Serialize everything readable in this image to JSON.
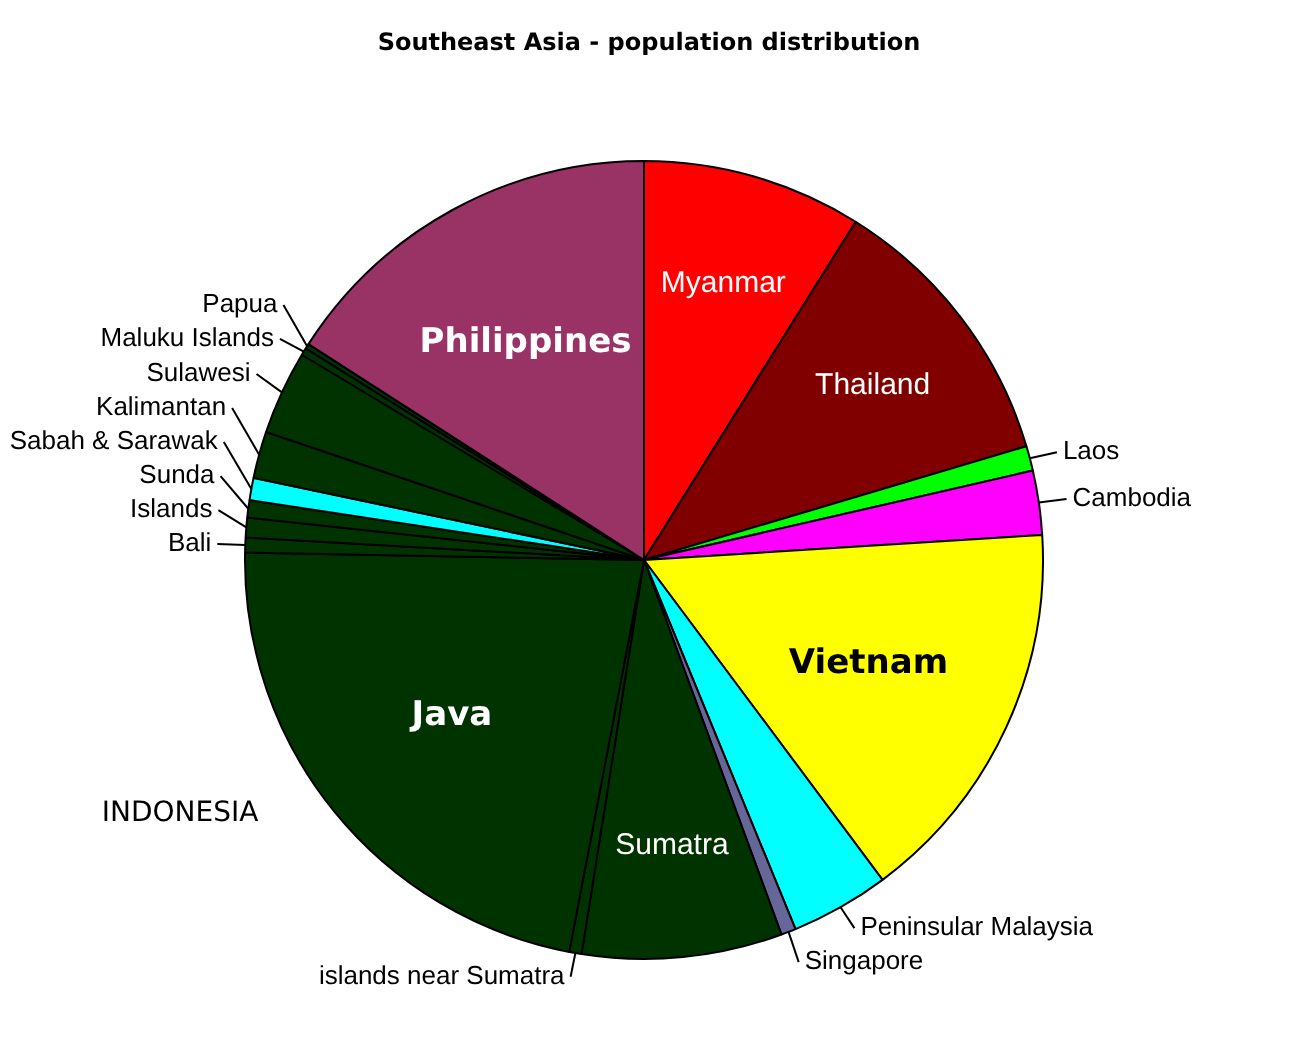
{
  "chart_data": {
    "type": "pie",
    "title": "Southeast Asia - population distribution",
    "categories": [
      "Myanmar",
      "Thailand",
      "Laos",
      "Cambodia",
      "Vietnam",
      "Peninsular Malaysia",
      "Singapore",
      "Sumatra",
      "islands near Sumatra",
      "Java",
      "Bali",
      "Islands",
      "Sunda",
      "Sabah & Sarawak",
      "Kalimantan",
      "Sulawesi",
      "Maluku Islands",
      "Papua",
      "Philippines"
    ],
    "values": [
      8.9,
      11.5,
      1.0,
      2.6,
      15.8,
      4.0,
      0.6,
      8.1,
      0.5,
      22.3,
      0.6,
      0.8,
      0.7,
      0.9,
      1.9,
      3.4,
      0.3,
      0.2,
      15.9
    ],
    "colors": [
      "#ff0000",
      "#800000",
      "#00ff00",
      "#ff00ff",
      "#ffff00",
      "#00ffff",
      "#666699",
      "#003300",
      "#003300",
      "#003300",
      "#003300",
      "#003300",
      "#003300",
      "#00ffff",
      "#003300",
      "#003300",
      "#003300",
      "#003300",
      "#993366"
    ],
    "annotations": [
      "INDONESIA"
    ],
    "legend": false
  }
}
